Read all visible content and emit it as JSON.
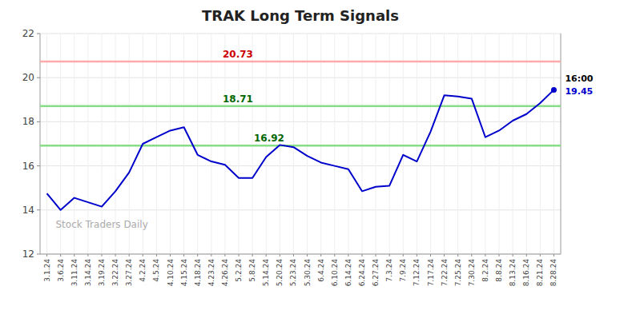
{
  "chart_data": {
    "type": "line",
    "title": "TRAK Long Term Signals",
    "categories": [
      "3.1.24",
      "3.6.24",
      "3.11.24",
      "3.14.24",
      "3.19.24",
      "3.22.24",
      "3.27.24",
      "4.2.24",
      "4.5.24",
      "4.10.24",
      "4.15.24",
      "4.18.24",
      "4.23.24",
      "4.26.24",
      "5.2.24",
      "5.8.24",
      "5.14.24",
      "5.20.24",
      "5.23.24",
      "5.30.24",
      "6.4.24",
      "6.10.24",
      "6.14.24",
      "6.24.24",
      "6.27.24",
      "7.3.24",
      "7.9.24",
      "7.12.24",
      "7.17.24",
      "7.22.24",
      "7.25.24",
      "7.30.24",
      "8.2.24",
      "8.8.24",
      "8.13.24",
      "8.16.24",
      "8.21.24",
      "8.28.24"
    ],
    "values": [
      14.75,
      14.0,
      14.55,
      14.35,
      14.15,
      14.85,
      15.7,
      17.0,
      17.3,
      17.6,
      17.75,
      16.5,
      16.2,
      16.05,
      15.45,
      15.45,
      16.4,
      16.95,
      16.85,
      16.45,
      16.15,
      16.0,
      15.85,
      14.85,
      15.05,
      15.1,
      16.5,
      16.2,
      17.55,
      19.2,
      19.15,
      19.05,
      17.3,
      17.6,
      18.05,
      18.35,
      18.85,
      19.45
    ],
    "color": "#0000cc",
    "ylim": [
      12,
      22
    ],
    "yticks": [
      12,
      14,
      16,
      18,
      20,
      22
    ],
    "grid": true,
    "reference_lines": [
      {
        "value": 20.73,
        "color": "#ffaaaa",
        "label_color": "#cc0000"
      },
      {
        "value": 18.71,
        "color": "#88dd88",
        "label_color": "#006600"
      },
      {
        "value": 16.92,
        "color": "#88dd88",
        "label_color": "#006600"
      }
    ],
    "last_price": 19.45,
    "annotations": [
      "16:00",
      "Stock Traders Daily"
    ]
  }
}
